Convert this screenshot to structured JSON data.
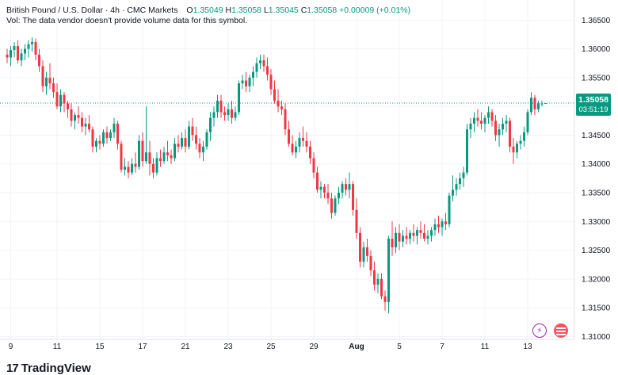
{
  "header": {
    "symbol": "British Pound / U.S. Dollar · 4h · CMC Markets",
    "open_label": "O",
    "open": "1.35049",
    "high_label": "H",
    "high": "1.35058",
    "low_label": "L",
    "low": "1.35045",
    "close_label": "C",
    "close": "1.35058",
    "change": "+0.00009 (+0.01%)",
    "vol_note": "Vol: The data vendor doesn't provide volume data for this symbol."
  },
  "price_tag": {
    "price": "1.35058",
    "countdown": "03:51:19"
  },
  "brand": {
    "logo": "17",
    "name": "TradingView"
  },
  "icons": {
    "bolt": "lightning-icon",
    "avatar": "avatar-icon"
  },
  "colors": {
    "up": "#089981",
    "down": "#f23645",
    "grid": "#f0f3fa",
    "axis_text": "#131722"
  },
  "chart_data": {
    "type": "candlestick",
    "interval": "4h",
    "ylim": [
      1.3095,
      1.3685
    ],
    "y_ticks": [
      "1.36500",
      "1.36000",
      "1.35500",
      "1.35000",
      "1.34500",
      "1.34000",
      "1.33500",
      "1.33000",
      "1.32500",
      "1.32000",
      "1.31500",
      "1.31000"
    ],
    "x_ticks": [
      {
        "label": "9",
        "i": 1
      },
      {
        "label": "11",
        "i": 14
      },
      {
        "label": "15",
        "i": 26
      },
      {
        "label": "17",
        "i": 38
      },
      {
        "label": "21",
        "i": 50
      },
      {
        "label": "23",
        "i": 62
      },
      {
        "label": "25",
        "i": 74
      },
      {
        "label": "29",
        "i": 86
      },
      {
        "label": "Aug",
        "i": 98
      },
      {
        "label": "5",
        "i": 110
      },
      {
        "label": "7",
        "i": 122
      },
      {
        "label": "11",
        "i": 134
      },
      {
        "label": "13",
        "i": 146
      }
    ],
    "last_price": 1.35058,
    "candles": [
      [
        1.359,
        1.36,
        1.3575,
        1.3585
      ],
      [
        1.3585,
        1.3605,
        1.357,
        1.3598
      ],
      [
        1.3598,
        1.3612,
        1.3585,
        1.3605
      ],
      [
        1.3605,
        1.3615,
        1.3575,
        1.358
      ],
      [
        1.358,
        1.36,
        1.357,
        1.3592
      ],
      [
        1.3592,
        1.3608,
        1.358,
        1.36
      ],
      [
        1.36,
        1.3615,
        1.3585,
        1.3608
      ],
      [
        1.3608,
        1.362,
        1.3595,
        1.3612
      ],
      [
        1.3612,
        1.3618,
        1.358,
        1.359
      ],
      [
        1.359,
        1.36,
        1.356,
        1.357
      ],
      [
        1.357,
        1.358,
        1.3525,
        1.3535
      ],
      [
        1.3535,
        1.356,
        1.352,
        1.355
      ],
      [
        1.355,
        1.3575,
        1.353,
        1.354
      ],
      [
        1.354,
        1.355,
        1.3515,
        1.3525
      ],
      [
        1.3525,
        1.354,
        1.3495,
        1.35
      ],
      [
        1.35,
        1.353,
        1.349,
        1.352
      ],
      [
        1.352,
        1.3525,
        1.349,
        1.3505
      ],
      [
        1.3505,
        1.351,
        1.348,
        1.3495
      ],
      [
        1.3495,
        1.3505,
        1.3465,
        1.3475
      ],
      [
        1.3475,
        1.349,
        1.346,
        1.3485
      ],
      [
        1.3485,
        1.35,
        1.347,
        1.348
      ],
      [
        1.348,
        1.349,
        1.3455,
        1.3465
      ],
      [
        1.3465,
        1.348,
        1.345,
        1.347
      ],
      [
        1.347,
        1.3485,
        1.3455,
        1.346
      ],
      [
        1.346,
        1.3465,
        1.342,
        1.343
      ],
      [
        1.343,
        1.3445,
        1.342,
        1.344
      ],
      [
        1.344,
        1.345,
        1.3425,
        1.3435
      ],
      [
        1.3435,
        1.346,
        1.343,
        1.3455
      ],
      [
        1.3455,
        1.3465,
        1.3435,
        1.3445
      ],
      [
        1.3445,
        1.346,
        1.344,
        1.3455
      ],
      [
        1.3455,
        1.348,
        1.3445,
        1.347
      ],
      [
        1.347,
        1.3475,
        1.3425,
        1.3435
      ],
      [
        1.3435,
        1.344,
        1.3385,
        1.339
      ],
      [
        1.339,
        1.341,
        1.338,
        1.3395
      ],
      [
        1.3395,
        1.3405,
        1.3375,
        1.3385
      ],
      [
        1.3385,
        1.341,
        1.338,
        1.34
      ],
      [
        1.34,
        1.342,
        1.3385,
        1.3395
      ],
      [
        1.3395,
        1.345,
        1.339,
        1.344
      ],
      [
        1.344,
        1.3455,
        1.3395,
        1.3405
      ],
      [
        1.3405,
        1.35,
        1.34,
        1.342
      ],
      [
        1.342,
        1.344,
        1.338,
        1.34
      ],
      [
        1.34,
        1.341,
        1.3375,
        1.3385
      ],
      [
        1.3385,
        1.342,
        1.338,
        1.341
      ],
      [
        1.341,
        1.3425,
        1.3395,
        1.3405
      ],
      [
        1.3405,
        1.343,
        1.34,
        1.342
      ],
      [
        1.342,
        1.344,
        1.3405,
        1.3415
      ],
      [
        1.3415,
        1.3425,
        1.34,
        1.341
      ],
      [
        1.341,
        1.3445,
        1.3405,
        1.3435
      ],
      [
        1.3435,
        1.345,
        1.342,
        1.343
      ],
      [
        1.343,
        1.3455,
        1.3425,
        1.3445
      ],
      [
        1.3445,
        1.346,
        1.342,
        1.343
      ],
      [
        1.343,
        1.3475,
        1.3425,
        1.3465
      ],
      [
        1.3465,
        1.348,
        1.344,
        1.345
      ],
      [
        1.345,
        1.3465,
        1.3425,
        1.3435
      ],
      [
        1.3435,
        1.3445,
        1.341,
        1.342
      ],
      [
        1.342,
        1.344,
        1.3405,
        1.343
      ],
      [
        1.343,
        1.346,
        1.3425,
        1.3455
      ],
      [
        1.3455,
        1.349,
        1.344,
        1.348
      ],
      [
        1.348,
        1.35,
        1.3465,
        1.349
      ],
      [
        1.349,
        1.352,
        1.348,
        1.351
      ],
      [
        1.351,
        1.352,
        1.348,
        1.349
      ],
      [
        1.349,
        1.35,
        1.3475,
        1.3485
      ],
      [
        1.3485,
        1.3505,
        1.3475,
        1.3495
      ],
      [
        1.3495,
        1.351,
        1.347,
        1.348
      ],
      [
        1.348,
        1.35,
        1.3475,
        1.349
      ],
      [
        1.349,
        1.3545,
        1.3485,
        1.354
      ],
      [
        1.354,
        1.3555,
        1.353,
        1.3545
      ],
      [
        1.3545,
        1.356,
        1.3525,
        1.3535
      ],
      [
        1.3535,
        1.3555,
        1.3525,
        1.355
      ],
      [
        1.355,
        1.357,
        1.3535,
        1.356
      ],
      [
        1.356,
        1.3585,
        1.355,
        1.3575
      ],
      [
        1.3575,
        1.359,
        1.3565,
        1.358
      ],
      [
        1.358,
        1.359,
        1.356,
        1.357
      ],
      [
        1.357,
        1.3585,
        1.3545,
        1.3555
      ],
      [
        1.3555,
        1.3565,
        1.352,
        1.353
      ],
      [
        1.353,
        1.3545,
        1.3505,
        1.351
      ],
      [
        1.351,
        1.353,
        1.349,
        1.35
      ],
      [
        1.35,
        1.351,
        1.3485,
        1.3495
      ],
      [
        1.3495,
        1.3505,
        1.345,
        1.346
      ],
      [
        1.346,
        1.3475,
        1.343,
        1.3435
      ],
      [
        1.3435,
        1.345,
        1.3415,
        1.342
      ],
      [
        1.342,
        1.344,
        1.341,
        1.343
      ],
      [
        1.343,
        1.3455,
        1.342,
        1.3445
      ],
      [
        1.3445,
        1.3465,
        1.343,
        1.344
      ],
      [
        1.344,
        1.3455,
        1.342,
        1.343
      ],
      [
        1.343,
        1.344,
        1.34,
        1.341
      ],
      [
        1.341,
        1.342,
        1.3375,
        1.3385
      ],
      [
        1.3385,
        1.3395,
        1.335,
        1.3355
      ],
      [
        1.3355,
        1.337,
        1.334,
        1.336
      ],
      [
        1.336,
        1.3365,
        1.334,
        1.335
      ],
      [
        1.335,
        1.3365,
        1.333,
        1.334
      ],
      [
        1.334,
        1.335,
        1.3305,
        1.3315
      ],
      [
        1.3315,
        1.3345,
        1.331,
        1.334
      ],
      [
        1.334,
        1.336,
        1.333,
        1.335
      ],
      [
        1.335,
        1.337,
        1.334,
        1.3365
      ],
      [
        1.3365,
        1.3375,
        1.3345,
        1.3355
      ],
      [
        1.3355,
        1.3385,
        1.334,
        1.3365
      ],
      [
        1.3365,
        1.337,
        1.331,
        1.332
      ],
      [
        1.332,
        1.334,
        1.327,
        1.328
      ],
      [
        1.328,
        1.329,
        1.322,
        1.323
      ],
      [
        1.323,
        1.3265,
        1.322,
        1.3255
      ],
      [
        1.3255,
        1.327,
        1.323,
        1.324
      ],
      [
        1.324,
        1.325,
        1.3205,
        1.3215
      ],
      [
        1.3215,
        1.323,
        1.318,
        1.319
      ],
      [
        1.319,
        1.321,
        1.3175,
        1.32
      ],
      [
        1.32,
        1.321,
        1.3165,
        1.317
      ],
      [
        1.317,
        1.318,
        1.3145,
        1.316
      ],
      [
        1.316,
        1.3275,
        1.314,
        1.327
      ],
      [
        1.327,
        1.33,
        1.324,
        1.3255
      ],
      [
        1.3255,
        1.329,
        1.3245,
        1.328
      ],
      [
        1.328,
        1.3295,
        1.325,
        1.3265
      ],
      [
        1.3265,
        1.3285,
        1.3255,
        1.3275
      ],
      [
        1.3275,
        1.329,
        1.326,
        1.327
      ],
      [
        1.327,
        1.3285,
        1.326,
        1.328
      ],
      [
        1.328,
        1.3295,
        1.3265,
        1.3275
      ],
      [
        1.3275,
        1.329,
        1.326,
        1.3285
      ],
      [
        1.3285,
        1.33,
        1.327,
        1.328
      ],
      [
        1.328,
        1.3295,
        1.3265,
        1.327
      ],
      [
        1.327,
        1.3285,
        1.326,
        1.3275
      ],
      [
        1.3275,
        1.329,
        1.3265,
        1.3285
      ],
      [
        1.3285,
        1.3305,
        1.3275,
        1.3295
      ],
      [
        1.3295,
        1.331,
        1.328,
        1.329
      ],
      [
        1.329,
        1.3305,
        1.3275,
        1.33
      ],
      [
        1.33,
        1.3315,
        1.3285,
        1.3295
      ],
      [
        1.3295,
        1.335,
        1.329,
        1.3345
      ],
      [
        1.3345,
        1.338,
        1.3335,
        1.3355
      ],
      [
        1.3355,
        1.3375,
        1.3345,
        1.3365
      ],
      [
        1.3365,
        1.3385,
        1.3355,
        1.3375
      ],
      [
        1.3375,
        1.3395,
        1.336,
        1.3385
      ],
      [
        1.3385,
        1.347,
        1.338,
        1.346
      ],
      [
        1.346,
        1.348,
        1.3445,
        1.347
      ],
      [
        1.347,
        1.349,
        1.3455,
        1.348
      ],
      [
        1.348,
        1.3495,
        1.3465,
        1.3475
      ],
      [
        1.3475,
        1.349,
        1.346,
        1.347
      ],
      [
        1.347,
        1.3485,
        1.3455,
        1.348
      ],
      [
        1.348,
        1.35,
        1.347,
        1.349
      ],
      [
        1.349,
        1.3495,
        1.3465,
        1.3475
      ],
      [
        1.3475,
        1.3485,
        1.344,
        1.345
      ],
      [
        1.345,
        1.347,
        1.343,
        1.346
      ],
      [
        1.346,
        1.348,
        1.345,
        1.347
      ],
      [
        1.347,
        1.3485,
        1.3455,
        1.3475
      ],
      [
        1.3475,
        1.348,
        1.342,
        1.343
      ],
      [
        1.343,
        1.3445,
        1.34,
        1.342
      ],
      [
        1.342,
        1.344,
        1.341,
        1.3435
      ],
      [
        1.3435,
        1.345,
        1.3425,
        1.344
      ],
      [
        1.344,
        1.3465,
        1.343,
        1.3455
      ],
      [
        1.3455,
        1.3495,
        1.345,
        1.349
      ],
      [
        1.349,
        1.3525,
        1.3485,
        1.3515
      ],
      [
        1.3515,
        1.352,
        1.3485,
        1.3495
      ],
      [
        1.3495,
        1.351,
        1.349,
        1.3505
      ],
      [
        1.3504,
        1.351,
        1.35,
        1.3505
      ],
      [
        1.35049,
        1.35058,
        1.35045,
        1.35058
      ]
    ]
  }
}
